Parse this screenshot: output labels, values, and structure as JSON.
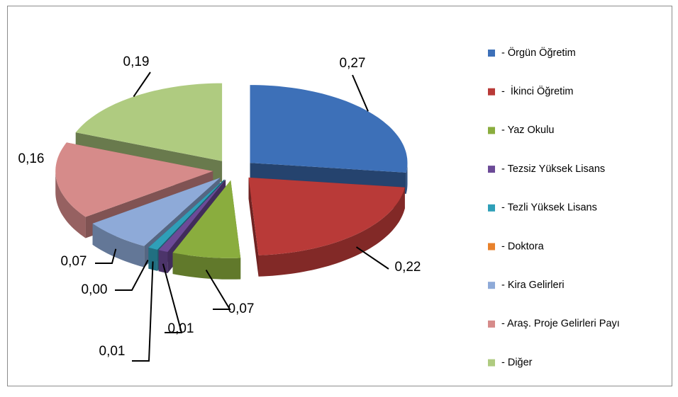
{
  "chart_data": {
    "type": "pie3d",
    "categories": [
      "- Örgün Öğretim",
      "-  İkinci Öğretim",
      "- Yaz Okulu",
      "- Tezsiz Yüksek Lisans",
      "- Tezli Yüksek Lisans",
      "- Doktora",
      "- Kira Gelirleri",
      "- Araş. Proje Gelirleri Payı",
      "- Diğer"
    ],
    "values": [
      0.27,
      0.22,
      0.07,
      0.01,
      0.01,
      0.0,
      0.07,
      0.16,
      0.19
    ],
    "value_labels": [
      "0,27",
      "0,22",
      "0,07",
      "0,01",
      "0,01",
      "0,00",
      "0,07",
      "0,16",
      "0,19"
    ],
    "colors": [
      "#3d70b8",
      "#b93a38",
      "#8aad3e",
      "#6c4a97",
      "#2f9fb8",
      "#e8812b",
      "#8eaad8",
      "#d68b8a",
      "#afcb80"
    ],
    "legend": "right"
  }
}
